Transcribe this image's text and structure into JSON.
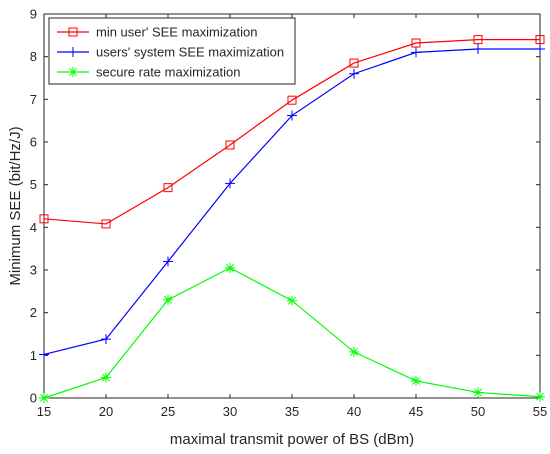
{
  "chart_data": {
    "type": "line",
    "xlabel": "maximal transmit power of BS (dBm)",
    "ylabel": "Minimum SEE (bit/Hz/J)",
    "x": [
      15,
      20,
      25,
      30,
      35,
      40,
      45,
      50,
      55
    ],
    "xlim": [
      15,
      55
    ],
    "ylim": [
      0,
      9
    ],
    "xticks": [
      "15",
      "20",
      "25",
      "30",
      "35",
      "40",
      "45",
      "50",
      "55"
    ],
    "yticks": [
      "0",
      "1",
      "2",
      "3",
      "4",
      "5",
      "6",
      "7",
      "8",
      "9"
    ],
    "grid": false,
    "legend_position": "top-left",
    "series": [
      {
        "name": "min user' SEE maximization",
        "color": "#ff0000",
        "marker": "square",
        "values": [
          4.2,
          4.08,
          4.93,
          5.93,
          6.98,
          7.85,
          8.32,
          8.4,
          8.4
        ]
      },
      {
        "name": "users' system SEE maximization",
        "color": "#0000ff",
        "marker": "plus",
        "values": [
          1.02,
          1.38,
          3.2,
          5.03,
          6.62,
          7.6,
          8.1,
          8.18,
          8.18
        ]
      },
      {
        "name": "secure rate maximization",
        "color": "#00ff00",
        "marker": "asterisk",
        "values": [
          0.0,
          0.48,
          2.3,
          3.05,
          2.28,
          1.08,
          0.4,
          0.13,
          0.03
        ]
      }
    ]
  }
}
